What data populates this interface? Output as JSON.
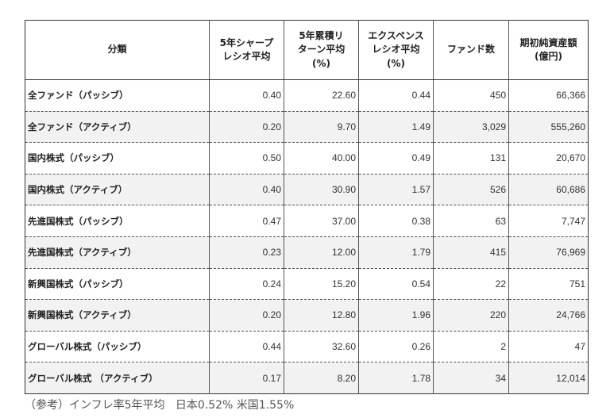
{
  "table": {
    "headers": [
      [
        "分類"
      ],
      [
        "5年シャープ",
        "レシオ平均"
      ],
      [
        "5年累積リ",
        "ターン平均",
        "(%)"
      ],
      [
        "エクスペンス",
        "レシオ平均",
        "(%)"
      ],
      [
        "ファンド数"
      ],
      [
        "期初純資産額",
        "(億円)"
      ]
    ],
    "rows": [
      [
        "全ファンド（パッシブ）",
        "0.40",
        "22.60",
        "0.44",
        "450",
        "66,366"
      ],
      [
        "全ファンド（アクティブ）",
        "0.20",
        "9.70",
        "1.49",
        "3,029",
        "555,260"
      ],
      [
        "国内株式（パッシブ）",
        "0.50",
        "40.00",
        "0.49",
        "131",
        "20,670"
      ],
      [
        "国内株式（アクティブ）",
        "0.40",
        "30.90",
        "1.57",
        "526",
        "60,686"
      ],
      [
        "先進国株式（パッシブ）",
        "0.47",
        "37.00",
        "0.38",
        "63",
        "7,747"
      ],
      [
        "先進国株式（アクティブ）",
        "0.23",
        "12.00",
        "1.79",
        "415",
        "76,969"
      ],
      [
        "新興国株式（パッシブ）",
        "0.24",
        "15.20",
        "0.54",
        "22",
        "751"
      ],
      [
        "新興国株式（アクティブ）",
        "0.20",
        "12.80",
        "1.96",
        "220",
        "24,766"
      ],
      [
        "グローバル株式（パッシブ）",
        "0.44",
        "32.60",
        "0.26",
        "2",
        "47"
      ],
      [
        "グローバル株式 （アクティブ）",
        "0.17",
        "8.20",
        "1.78",
        "34",
        "12,014"
      ]
    ]
  },
  "note": {
    "prefix": "（参考）インフレ率5年平均",
    "japan": "日本0.52%",
    "us": "米国1.55%"
  }
}
